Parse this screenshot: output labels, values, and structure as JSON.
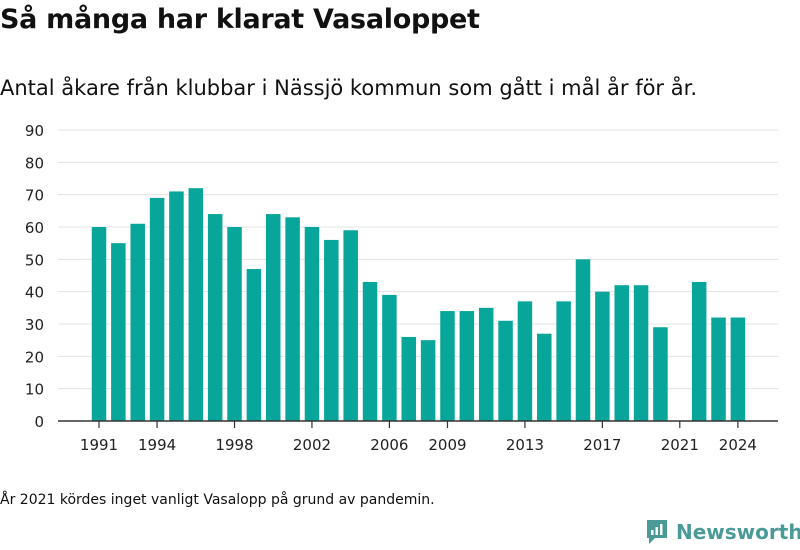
{
  "title": "Så många har klarat Vasaloppet",
  "subtitle": "Antal åkare från klubbar i Nässjö kommun som gått i mål år för år.",
  "note": "År 2021 kördes inget vanligt Vasalopp på grund av pandemin.",
  "brand": {
    "name": "Newsworthy",
    "color": "#4a9a98"
  },
  "chart_data": {
    "type": "bar",
    "categories": [
      1991,
      1992,
      1993,
      1994,
      1995,
      1996,
      1997,
      1998,
      1999,
      2000,
      2001,
      2002,
      2003,
      2004,
      2005,
      2006,
      2007,
      2008,
      2009,
      2010,
      2011,
      2012,
      2013,
      2014,
      2015,
      2016,
      2017,
      2018,
      2019,
      2020,
      2021,
      2022,
      2023,
      2024
    ],
    "values": [
      60,
      55,
      61,
      69,
      71,
      72,
      64,
      60,
      47,
      64,
      63,
      60,
      56,
      59,
      43,
      39,
      26,
      25,
      34,
      34,
      35,
      31,
      37,
      27,
      37,
      50,
      40,
      42,
      42,
      29,
      null,
      43,
      32,
      32
    ],
    "x_tick_labels": [
      1991,
      1994,
      1998,
      2002,
      2006,
      2009,
      2013,
      2017,
      2021,
      2024
    ],
    "y_ticks": [
      0,
      10,
      20,
      30,
      40,
      50,
      60,
      70,
      80,
      90
    ],
    "ylim": [
      0,
      90
    ],
    "bar_color": "#07a59a",
    "grid": true
  }
}
